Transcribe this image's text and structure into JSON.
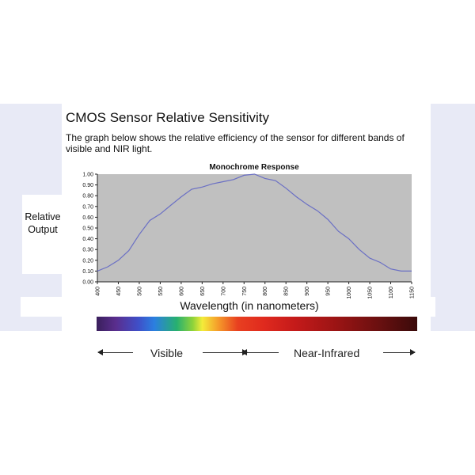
{
  "page": {
    "title": "CMOS Sensor Relative Sensitivity",
    "description": "The graph below shows the relative efficiency of the sensor for different bands of visible and NIR light."
  },
  "colors": {
    "plot_background": "#c0c0c0",
    "line": "#6a6fc4",
    "background_band": "#e8eaf6"
  },
  "chart_data": {
    "type": "line",
    "title": "Monochrome Response",
    "xlabel": "Wavelength (in nanometers)",
    "ylabel": "Relative Output",
    "ylim": [
      0,
      1.0
    ],
    "y_ticks": [
      "0.00",
      "0.10",
      "0.20",
      "0.30",
      "0.40",
      "0.50",
      "0.60",
      "0.70",
      "0.80",
      "0.90",
      "1.00"
    ],
    "categories": [
      "400",
      "450",
      "500",
      "550",
      "600",
      "650",
      "700",
      "750",
      "800",
      "850",
      "900",
      "950",
      "1000",
      "1050",
      "1100",
      "1150"
    ],
    "grid": false,
    "legend": "none",
    "series": [
      {
        "x": [
          400,
          425,
          450,
          475,
          500,
          525,
          550,
          575,
          600,
          625,
          650,
          675,
          700,
          725,
          750,
          775,
          800,
          825,
          850,
          875,
          900,
          925,
          950,
          975,
          1000,
          1025,
          1050,
          1075,
          1100,
          1125,
          1150
        ],
        "y": [
          0.1,
          0.14,
          0.2,
          0.29,
          0.44,
          0.57,
          0.63,
          0.71,
          0.79,
          0.86,
          0.88,
          0.91,
          0.93,
          0.95,
          0.99,
          1.0,
          0.96,
          0.94,
          0.87,
          0.79,
          0.72,
          0.66,
          0.58,
          0.47,
          0.4,
          0.3,
          0.22,
          0.18,
          0.12,
          0.1,
          0.1
        ]
      }
    ]
  },
  "spectrum": {
    "visible_label": "Visible",
    "nir_label": "Near-Infrared"
  }
}
